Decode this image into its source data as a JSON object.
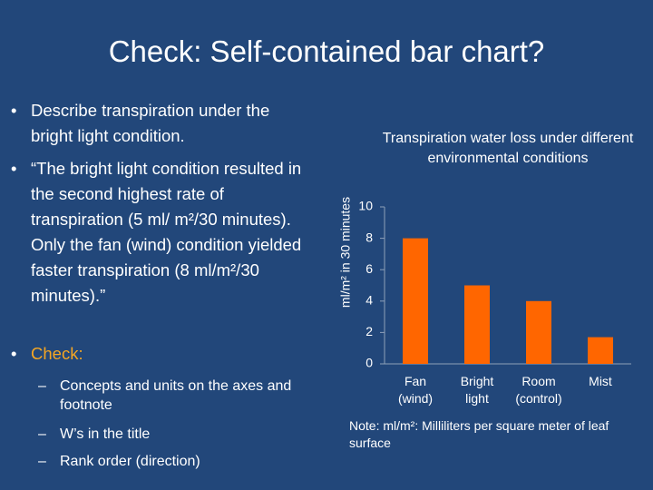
{
  "slide": {
    "title": "Check: Self-contained bar chart?",
    "bullets": [
      "Describe transpiration under the bright light condition.",
      "“The bright light condition resulted in the second highest rate of transpiration (5 ml/ m²/30 minutes). Only the fan (wind) condition yielded faster transpiration (8 ml/m²/30 minutes).”",
      "Check:"
    ],
    "sub_bullets": [
      "Concepts and units on the axes and footnote",
      "W’s in the title",
      "Rank order (direction)"
    ]
  },
  "chart_data": {
    "type": "bar",
    "title": "Transpiration water loss under different environmental conditions",
    "y_label": "ml/m² in 30 minutes",
    "categories": [
      "Fan (wind)",
      "Bright light",
      "Room (control)",
      "Mist"
    ],
    "values": [
      8,
      5,
      4,
      1.7
    ],
    "color": "#ff6600",
    "ylim": [
      0,
      10
    ],
    "yticks": [
      0,
      2,
      4,
      6,
      8,
      10
    ],
    "note": "Note: ml/m²: Milliliters per square meter of leaf surface"
  }
}
